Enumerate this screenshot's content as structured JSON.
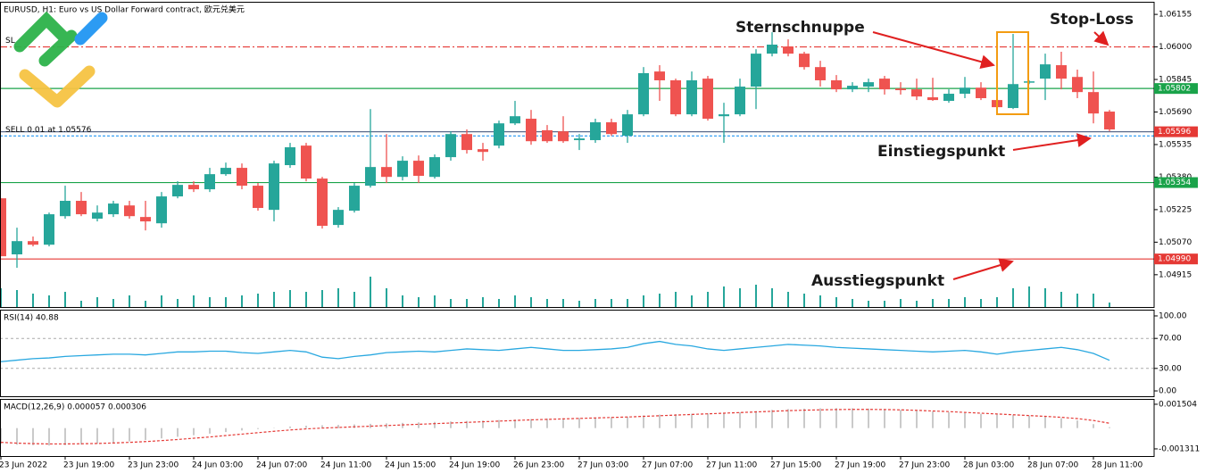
{
  "chart_data": [
    {
      "type": "candlestick",
      "title": "EURUSD, H1:  Euro vs US Dollar Forward contract, 欧元兑美元",
      "categories": [
        "23 Jun 2022",
        null,
        null,
        null,
        "23 Jun 19:00",
        null,
        null,
        null,
        "23 Jun 23:00",
        null,
        null,
        null,
        "24 Jun 03:00",
        null,
        null,
        null,
        "24 Jun 07:00",
        null,
        null,
        null,
        "24 Jun 11:00",
        null,
        null,
        null,
        "24 Jun 15:00",
        null,
        null,
        null,
        "24 Jun 19:00",
        null,
        null,
        null,
        "26 Jun 23:00",
        null,
        null,
        null,
        "27 Jun 03:00",
        null,
        null,
        null,
        "27 Jun 07:00",
        null,
        null,
        null,
        "27 Jun 11:00",
        null,
        null,
        null,
        "27 Jun 15:00",
        null,
        null,
        null,
        "27 Jun 19:00",
        null,
        null,
        null,
        "27 Jun 23:00",
        null,
        null,
        null,
        "28 Jun 03:00",
        null,
        null,
        null,
        "28 Jun 07:00",
        null,
        null,
        null,
        "28 Jun 11:00",
        null
      ],
      "open": [
        1.05279,
        1.05012,
        1.05075,
        1.05058,
        1.05194,
        1.05267,
        1.05182,
        1.05203,
        1.05245,
        1.0519,
        1.0516,
        1.05288,
        1.05343,
        1.05322,
        1.05394,
        1.05424,
        1.05339,
        1.05224,
        1.05437,
        1.0553,
        1.05373,
        1.05152,
        1.0522,
        1.05339,
        1.05428,
        1.05381,
        1.05458,
        1.05381,
        1.05475,
        1.05585,
        1.05513,
        1.0553,
        1.05636,
        1.05658,
        1.05603,
        1.05598,
        1.05556,
        1.05556,
        1.05641,
        1.05577,
        1.05679,
        1.05883,
        1.05841,
        1.05679,
        1.05849,
        1.0567,
        1.05679,
        1.05811,
        1.05968,
        1.06002,
        1.05968,
        1.05904,
        1.05841,
        1.05798,
        1.05811,
        1.05849,
        1.05802,
        1.05798,
        1.0576,
        1.05743,
        1.05777,
        1.05806,
        1.05747,
        1.05709,
        1.05832,
        1.05849,
        1.05913,
        1.05857,
        1.05785,
        1.05692
      ],
      "high": [
        1.05279,
        1.05139,
        1.05097,
        1.05211,
        1.05339,
        1.05309,
        1.05245,
        1.05267,
        1.05267,
        1.05267,
        1.05309,
        1.0536,
        1.0536,
        1.05424,
        1.05449,
        1.05445,
        1.05352,
        1.05458,
        1.05543,
        1.05543,
        1.05381,
        1.05237,
        1.05352,
        1.05704,
        1.05585,
        1.05479,
        1.05483,
        1.05488,
        1.05598,
        1.05607,
        1.05543,
        1.05649,
        1.05743,
        1.057,
        1.05628,
        1.0567,
        1.05585,
        1.05658,
        1.05658,
        1.057,
        1.05904,
        1.05913,
        1.05849,
        1.05883,
        1.05862,
        1.05734,
        1.05849,
        1.05989,
        1.0607,
        1.06036,
        1.05977,
        1.05934,
        1.05866,
        1.05832,
        1.05849,
        1.05862,
        1.05832,
        1.05849,
        1.05853,
        1.05798,
        1.05857,
        1.05832,
        1.05798,
        1.06062,
        1.05841,
        1.05968,
        1.05977,
        1.05892,
        1.05883,
        1.057
      ],
      "low": [
        1.05003,
        1.04948,
        1.0505,
        1.0505,
        1.05182,
        1.05194,
        1.05169,
        1.0519,
        1.05182,
        1.05126,
        1.05139,
        1.05279,
        1.05309,
        1.05309,
        1.05386,
        1.05322,
        1.0522,
        1.05169,
        1.05424,
        1.0536,
        1.05135,
        1.05139,
        1.05211,
        1.0533,
        1.05352,
        1.05364,
        1.05352,
        1.05373,
        1.05458,
        1.05492,
        1.05458,
        1.05517,
        1.05628,
        1.05534,
        1.05543,
        1.05543,
        1.05509,
        1.05543,
        1.05577,
        1.05543,
        1.0567,
        1.05743,
        1.0567,
        1.0567,
        1.05649,
        1.05543,
        1.0567,
        1.05704,
        1.05955,
        1.05955,
        1.05892,
        1.05811,
        1.05785,
        1.05785,
        1.05785,
        1.05773,
        1.05773,
        1.05747,
        1.05743,
        1.05734,
        1.05756,
        1.05747,
        1.057,
        1.05704,
        1.05823,
        1.05747,
        1.05798,
        1.05756,
        1.05636,
        1.05598
      ],
      "close": [
        1.05003,
        1.05075,
        1.05058,
        1.05203,
        1.05267,
        1.05203,
        1.05211,
        1.05254,
        1.05194,
        1.05169,
        1.05288,
        1.05343,
        1.05322,
        1.05394,
        1.05424,
        1.05339,
        1.05233,
        1.05445,
        1.05522,
        1.05373,
        1.05148,
        1.05224,
        1.05339,
        1.05428,
        1.05381,
        1.05458,
        1.05386,
        1.05475,
        1.05585,
        1.05509,
        1.055,
        1.05636,
        1.0567,
        1.05551,
        1.05551,
        1.05551,
        1.05564,
        1.05641,
        1.05585,
        1.05679,
        1.05875,
        1.05841,
        1.05679,
        1.05841,
        1.05658,
        1.05679,
        1.05811,
        1.05968,
        1.06011,
        1.05968,
        1.05904,
        1.05841,
        1.05798,
        1.05815,
        1.05832,
        1.05798,
        1.05794,
        1.05764,
        1.05747,
        1.05777,
        1.05806,
        1.05756,
        1.05713,
        1.05823,
        1.05836,
        1.05917,
        1.05849,
        1.05785,
        1.05683,
        1.05607
      ],
      "volume": [
        22,
        20,
        16,
        14,
        18,
        8,
        12,
        10,
        14,
        8,
        14,
        10,
        14,
        12,
        12,
        14,
        16,
        18,
        20,
        18,
        20,
        22,
        18,
        35,
        22,
        14,
        12,
        14,
        10,
        10,
        12,
        10,
        14,
        12,
        10,
        10,
        8,
        10,
        10,
        10,
        14,
        16,
        18,
        14,
        18,
        24,
        22,
        26,
        22,
        18,
        16,
        14,
        12,
        10,
        8,
        8,
        10,
        8,
        10,
        10,
        12,
        10,
        12,
        22,
        24,
        22,
        18,
        16,
        16,
        6
      ],
      "up_color": "#26a69a",
      "down_color": "#ef5350",
      "volume_color": "#26a69a",
      "ylim": [
        1.04757,
        1.06215
      ],
      "yticks": [
        1.06155,
        {
          "value": 1.06,
          "label": "1.06000"
        },
        1.05845,
        {
          "value": 1.0569,
          "label": "1.05690"
        },
        1.05535,
        {
          "value": 1.0538,
          "label": "1.05380"
        },
        1.05225,
        {
          "value": 1.0507,
          "label": "1.05070"
        },
        1.04915
      ],
      "levels": [
        {
          "value": 1.06,
          "color": "#e53935",
          "style": "dashdot",
          "label": "SL"
        },
        {
          "value": 1.05802,
          "color": "#1aa34a",
          "tag": "1.05802"
        },
        {
          "value": 1.05596,
          "color": "#5b6b8c",
          "tag": "1.05596",
          "tag_color": "#e53935"
        },
        {
          "value": 1.05576,
          "color": "#2196f3",
          "style": "dash",
          "label": "SELL 0.01 at 1.05576"
        },
        {
          "value": 1.05354,
          "color": "#1aa34a",
          "tag": "1.05354"
        },
        {
          "value": 1.0499,
          "color": "#e53935",
          "tag": "1.04990"
        }
      ],
      "annotations": [
        "Sternschnuppe",
        "Stop-Loss",
        "Einstiegspunkt",
        "Ausstiegspunkt"
      ]
    },
    {
      "type": "line",
      "title": "RSI(14) 40.88",
      "values": [
        39,
        41,
        43,
        44,
        46,
        47,
        48,
        49,
        49,
        48,
        50,
        52,
        52,
        53,
        53,
        51,
        50,
        52,
        54,
        52,
        45,
        43,
        46,
        48,
        51,
        52,
        53,
        52,
        54,
        56,
        55,
        54,
        56,
        58,
        56,
        54,
        54,
        55,
        56,
        58,
        63,
        66,
        62,
        60,
        56,
        54,
        56,
        58,
        60,
        62,
        61,
        60,
        58,
        57,
        56,
        55,
        54,
        53,
        52,
        53,
        54,
        52,
        49,
        52,
        54,
        56,
        58,
        55,
        50,
        40.88
      ],
      "color": "#29a8e0",
      "ylim": [
        -8.3,
        108.3
      ],
      "yticks": [
        {
          "value": 100,
          "label": "100.00"
        },
        {
          "value": 70,
          "label": "70.00"
        },
        {
          "value": 30,
          "label": "30.00"
        },
        {
          "value": 0,
          "label": "0.00"
        }
      ],
      "levels": [
        70,
        30
      ]
    },
    {
      "type": "bar",
      "title": "MACD(12,26,9) 0.000057 0.000306",
      "values": [
        -0.001,
        -0.00105,
        -0.00108,
        -0.0011,
        -0.00108,
        -0.00104,
        -0.00099,
        -0.00092,
        -0.00084,
        -0.00075,
        -0.00065,
        -0.00055,
        -0.00045,
        -0.00035,
        -0.00025,
        -0.00015,
        -6e-05,
        2e-05,
        0.0001,
        0.00015,
        0.00018,
        0.0002,
        0.00023,
        0.00027,
        0.0003,
        0.00033,
        0.00036,
        0.00039,
        0.00042,
        0.00045,
        0.00048,
        0.00051,
        0.00054,
        0.00057,
        0.0006,
        0.00062,
        0.00064,
        0.00066,
        0.00069,
        0.00072,
        0.0008,
        0.00085,
        0.00088,
        0.0009,
        0.00093,
        0.00096,
        0.001,
        0.00108,
        0.00115,
        0.0012,
        0.00123,
        0.00125,
        0.00126,
        0.00125,
        0.00123,
        0.0012,
        0.00115,
        0.0011,
        0.00105,
        0.001,
        0.00095,
        0.0009,
        0.00085,
        0.00082,
        0.00078,
        0.00072,
        0.00062,
        0.00048,
        0.00025,
        5.7e-05
      ],
      "color": "#b8b8b8",
      "signal_values": [
        -0.0009,
        -0.00095,
        -0.00098,
        -0.001,
        -0.001,
        -0.00099,
        -0.00097,
        -0.00094,
        -0.0009,
        -0.00085,
        -0.00079,
        -0.00072,
        -0.00064,
        -0.00056,
        -0.00047,
        -0.00038,
        -0.00029,
        -0.0002,
        -0.00012,
        -5e-05,
        0,
        4e-05,
        8e-05,
        0.00012,
        0.00016,
        0.0002,
        0.00024,
        0.00028,
        0.00032,
        0.00036,
        0.0004,
        0.00044,
        0.00048,
        0.00052,
        0.00055,
        0.00058,
        0.00061,
        0.00064,
        0.00067,
        0.0007,
        0.00074,
        0.00078,
        0.00082,
        0.00086,
        0.0009,
        0.00094,
        0.00098,
        0.00102,
        0.00106,
        0.0011,
        0.00113,
        0.00115,
        0.00117,
        0.00118,
        0.00118,
        0.00117,
        0.00115,
        0.00112,
        0.00108,
        0.00104,
        0.00099,
        0.00094,
        0.00089,
        0.00084,
        0.00079,
        0.00074,
        0.00068,
        0.0006,
        0.00048,
        0.000306
      ],
      "signal_color": "#e53935",
      "ylim": [
        -0.00182,
        0.00184
      ],
      "yticks": [
        0.001504,
        -0.001311
      ]
    }
  ]
}
